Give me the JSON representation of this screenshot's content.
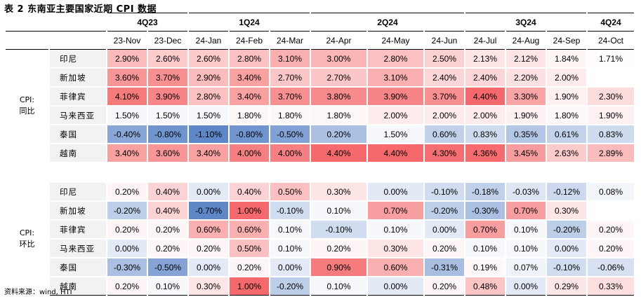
{
  "title": "表 2 东南亚主要国家近期 CPI 数据",
  "source": "资料来源：wind, HTI",
  "quarters": [
    {
      "label": "4Q23",
      "span": 2
    },
    {
      "label": "1Q24",
      "span": 3
    },
    {
      "label": "2Q24",
      "span": 3
    },
    {
      "label": "3Q24",
      "span": 3
    },
    {
      "label": "4Q24",
      "span": 1
    }
  ],
  "months": [
    "23-Nov",
    "23-Dec",
    "24-Jan",
    "24-Feb",
    "24-Mar",
    "24-Apr",
    "24-May",
    "24-Jun",
    "24-Jul",
    "24-Aug",
    "24-Sep",
    "24-Oct"
  ],
  "groups": [
    {
      "label": "CPI:同比",
      "rows": [
        {
          "country": "印尼",
          "values": [
            "2.90%",
            "2.60%",
            "2.60%",
            "2.80%",
            "3.10%",
            "3.00%",
            "2.80%",
            "2.50%",
            "2.13%",
            "2.12%",
            "1.84%",
            "1.71%"
          ]
        },
        {
          "country": "新加坡",
          "values": [
            "3.60%",
            "3.70%",
            "2.90%",
            "3.40%",
            "2.70%",
            "2.70%",
            "3.10%",
            "2.40%",
            "2.40%",
            "2.20%",
            "2.00%",
            ""
          ]
        },
        {
          "country": "菲律宾",
          "values": [
            "4.10%",
            "3.90%",
            "2.80%",
            "3.40%",
            "3.70%",
            "3.80%",
            "3.90%",
            "3.70%",
            "4.40%",
            "3.30%",
            "1.90%",
            "2.30%"
          ]
        },
        {
          "country": "马来西亚",
          "values": [
            "1.50%",
            "1.50%",
            "1.50%",
            "1.80%",
            "1.80%",
            "1.80%",
            "2.00%",
            "2.00%",
            "2.00%",
            "1.90%",
            "1.80%",
            "1.90%"
          ]
        },
        {
          "country": "泰国",
          "values": [
            "-0.40%",
            "-0.80%",
            "-1.10%",
            "-0.80%",
            "-0.50%",
            "0.20%",
            "1.50%",
            "0.60%",
            "0.83%",
            "0.35%",
            "0.61%",
            "0.83%"
          ]
        },
        {
          "country": "越南",
          "values": [
            "3.40%",
            "3.60%",
            "3.40%",
            "4.00%",
            "4.00%",
            "4.40%",
            "4.40%",
            "4.30%",
            "4.36%",
            "3.45%",
            "2.63%",
            "2.89%"
          ]
        }
      ]
    },
    {
      "label": "CPI:环比",
      "rows": [
        {
          "country": "印尼",
          "values": [
            "0.20%",
            "0.40%",
            "0.00%",
            "0.40%",
            "0.50%",
            "0.30%",
            "0.00%",
            "-0.10%",
            "-0.18%",
            "-0.03%",
            "-0.12%",
            "0.08%"
          ]
        },
        {
          "country": "新加坡",
          "values": [
            "-0.20%",
            "0.40%",
            "-0.70%",
            "1.00%",
            "-0.10%",
            "0.10%",
            "0.70%",
            "-0.20%",
            "-0.30%",
            "0.70%",
            "0.30%",
            ""
          ]
        },
        {
          "country": "菲律宾",
          "values": [
            "0.20%",
            "0.20%",
            "0.60%",
            "0.60%",
            "0.10%",
            "-0.10%",
            "0.10%",
            "0.00%",
            "0.70%",
            "0.10%",
            "-0.20%",
            "0.20%"
          ]
        },
        {
          "country": "马来西亚",
          "values": [
            "0.00%",
            "0.20%",
            "0.20%",
            "0.50%",
            "0.10%",
            "0.20%",
            "0.30%",
            "0.20%",
            "0.10%",
            "0.10%",
            "0.00%",
            "0.20%"
          ]
        },
        {
          "country": "泰国",
          "values": [
            "-0.30%",
            "-0.50%",
            "0.00%",
            "0.20%",
            "0.00%",
            "0.90%",
            "0.60%",
            "-0.31%",
            "0.19%",
            "0.07%",
            "-0.10%",
            "-0.06%"
          ]
        },
        {
          "country": "越南",
          "values": [
            "0.20%",
            "0.10%",
            "0.30%",
            "1.00%",
            "-0.20%",
            "0.10%",
            "0.00%",
            "0.20%",
            "0.48%",
            "0.00%",
            "0.29%",
            "0.33%"
          ]
        }
      ]
    }
  ]
}
